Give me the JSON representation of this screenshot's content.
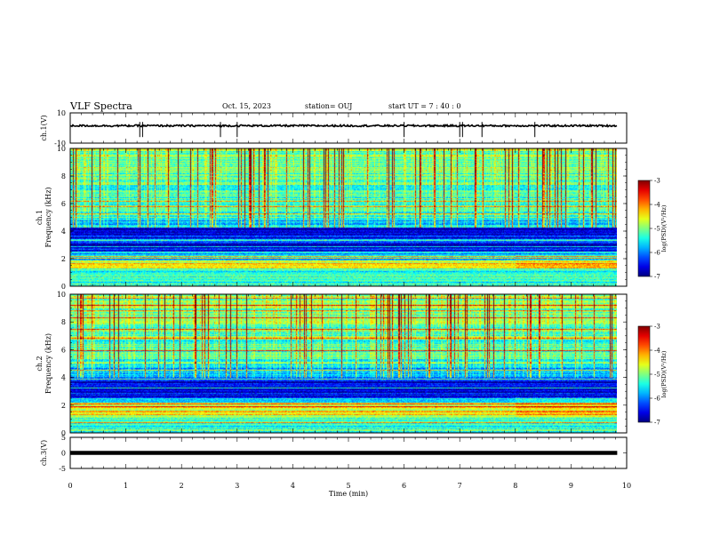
{
  "header": {
    "title": "VLF Spectra",
    "date": "Oct. 15, 2023",
    "station": "station= OUJ",
    "start": "start  UT  =   7 : 40 : 0"
  },
  "chart_data": {
    "type": "heatmap",
    "xlabel": "Time (min)",
    "xlim": [
      0,
      10
    ],
    "xticks": [
      0,
      1,
      2,
      3,
      4,
      5,
      6,
      7,
      8,
      9,
      10
    ],
    "data_end_min": 9.83,
    "panels": [
      {
        "kind": "waveform",
        "ylabel": "ch.1(V)",
        "ylim": [
          -10,
          10
        ],
        "yticks": [
          "10",
          "-10"
        ],
        "baseline": 0,
        "spikes_min": [
          1.3,
          1.25,
          2.7,
          3.0,
          6.0,
          7.0,
          7.05,
          7.4,
          8.35
        ]
      },
      {
        "kind": "spectrogram",
        "ylabel": "ch.1\nFrequency (kHz)",
        "ylim": [
          0,
          10
        ],
        "yticks": [
          "0",
          "2",
          "4",
          "6",
          "8",
          "10"
        ],
        "colorbar": {
          "label": "log(PSD)(V²/Hz)",
          "range": [
            -7,
            -3
          ],
          "ticks": [
            "-3",
            "-4",
            "-5",
            "-6",
            "-7"
          ]
        },
        "bands_khz": {
          "strong": [
            1.3,
            1.9
          ],
          "dark": [
            2.5,
            4.3
          ],
          "medium": [
            4.3,
            5.0
          ],
          "spheric_top": 10.0
        },
        "change_at_min": 8.0
      },
      {
        "kind": "spectrogram",
        "ylabel": "ch.2\nFrequency (kHz)",
        "ylim": [
          0,
          10
        ],
        "yticks": [
          "0",
          "2",
          "4",
          "6",
          "8",
          "10"
        ],
        "colorbar": {
          "label": "log(PSD)(V²/Hz)",
          "range": [
            -7,
            -3
          ],
          "ticks": [
            "-3",
            "-4",
            "-5",
            "-6",
            "-7"
          ]
        },
        "bands_khz": {
          "strong": [
            1.2,
            2.2
          ],
          "dark": [
            2.5,
            4.0
          ],
          "medium": [
            4.0,
            4.8
          ],
          "spheric_top": 10.0
        },
        "change_at_min": 8.0
      },
      {
        "kind": "waveform",
        "ylabel": "ch.3(V)",
        "ylim": [
          -5,
          5
        ],
        "yticks": [
          "5",
          "0",
          "-5"
        ],
        "baseline": 0,
        "spikes_min": []
      }
    ]
  }
}
